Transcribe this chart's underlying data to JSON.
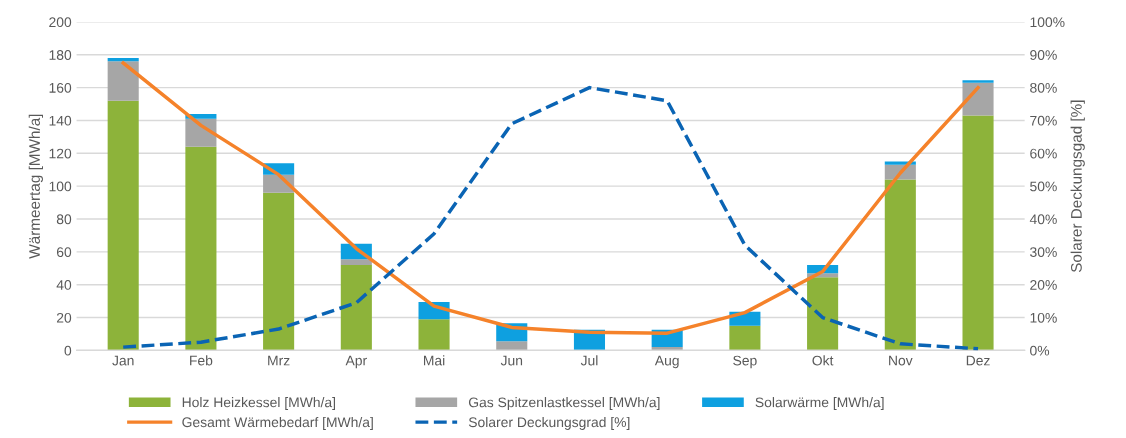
{
  "chart_data": {
    "type": "bar",
    "stacked": true,
    "ylabel": "Wärmeertag [MWh/a]",
    "y2label": "Solarer Deckungsgad [%]",
    "categories": [
      "Jan",
      "Feb",
      "Mrz",
      "Apr",
      "Mai",
      "Jun",
      "Jul",
      "Aug",
      "Sep",
      "Okt",
      "Nov",
      "Dez"
    ],
    "series": [
      {
        "name": "Holz Heizkessel [MWh/a]",
        "color": "#8db33a",
        "values": [
          152,
          124,
          96,
          52,
          19,
          0,
          0,
          0,
          15,
          44.5,
          104,
          143
        ]
      },
      {
        "name": "Gas Spitzenlastkessel [MWh/a]",
        "color": "#a6a6a6",
        "values": [
          24,
          17,
          11,
          3.5,
          null,
          5.5,
          null,
          2,
          null,
          2.5,
          9,
          20
        ]
      },
      {
        "name": "Solarwärme [MWh/a]",
        "color": "#0ea0e0",
        "values": [
          2,
          3,
          7,
          9.5,
          10.5,
          11,
          12.5,
          10.5,
          8.5,
          5,
          2,
          1.5
        ]
      },
      {
        "name": "Gesamt Wärmebedarf [MWh/a]",
        "type": "line",
        "color": "#f5822a",
        "line_style": "solid",
        "values": [
          175,
          137,
          107,
          62,
          27,
          14,
          11,
          10.5,
          23,
          48,
          108,
          160
        ]
      },
      {
        "name": "Solarer Deckungsgrad [%]",
        "type": "line",
        "axis": "y2",
        "color": "#0a64b4",
        "line_style": "dashed",
        "values": [
          1,
          2.5,
          6.5,
          14.5,
          35.5,
          69,
          80,
          76,
          32,
          10,
          2,
          0.5
        ]
      }
    ],
    "ylim": [
      0,
      200
    ],
    "yticks": [
      0,
      20,
      40,
      60,
      80,
      100,
      120,
      140,
      160,
      180,
      200
    ],
    "y2lim": [
      0,
      100
    ],
    "y2ticks": [
      {
        "value": 0,
        "label": "0%"
      },
      {
        "value": 10,
        "label": "10%"
      },
      {
        "value": 20,
        "label": "20%"
      },
      {
        "value": 30,
        "label": "30%"
      },
      {
        "value": 40,
        "label": "40%"
      },
      {
        "value": 50,
        "label": "50%"
      },
      {
        "value": 60,
        "label": "60%"
      },
      {
        "value": 70,
        "label": "70%"
      },
      {
        "value": 80,
        "label": "80%"
      },
      {
        "value": 90,
        "label": "90%"
      },
      {
        "value": 100,
        "label": "100%"
      }
    ],
    "grid": "y",
    "legend": "bottom"
  }
}
